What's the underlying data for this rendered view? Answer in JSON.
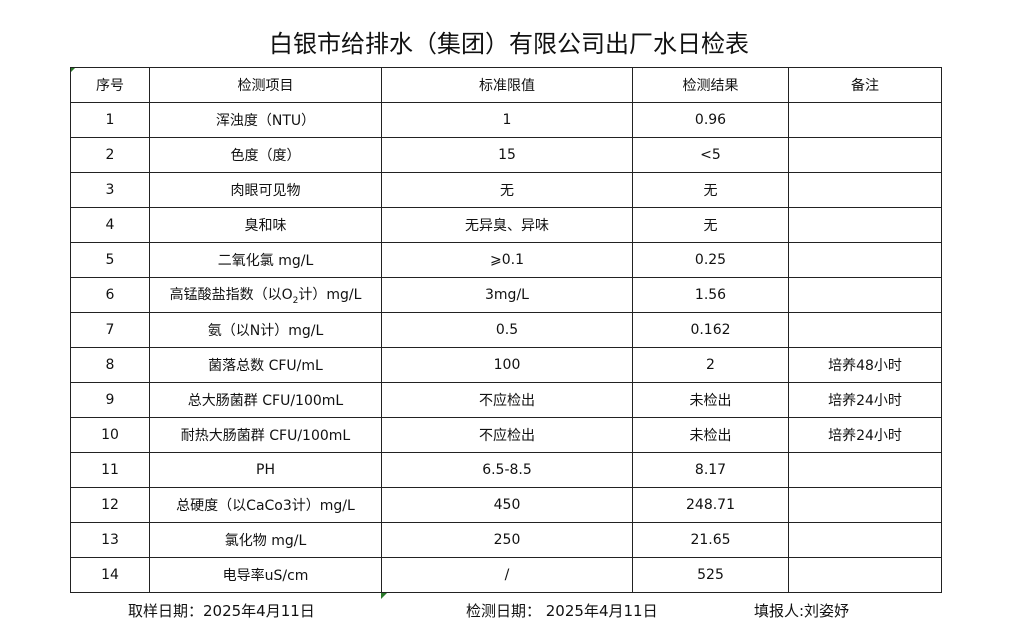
{
  "title": "白银市给排水（集团）有限公司出厂水日检表",
  "headers": [
    "序号",
    "检测项目",
    "标准限值",
    "检测结果",
    "备注"
  ],
  "rows": [
    {
      "no": "1",
      "item": "浑浊度（NTU）",
      "limit": "1",
      "result": "0.96",
      "note": ""
    },
    {
      "no": "2",
      "item": "色度（度）",
      "limit": "15",
      "result": "<5",
      "note": ""
    },
    {
      "no": "3",
      "item": "肉眼可见物",
      "limit": "无",
      "result": "无",
      "note": ""
    },
    {
      "no": "4",
      "item": "臭和味",
      "limit": "无异臭、异味",
      "result": "无",
      "note": ""
    },
    {
      "no": "5",
      "item": "二氧化氯 mg/L",
      "limit": "⩾0.1",
      "result": "0.25",
      "note": ""
    },
    {
      "no": "6",
      "item": "高锰酸盐指数（以O2计）mg/L",
      "item_parts": [
        "高锰酸盐指数（以O",
        "2",
        "计）mg/L"
      ],
      "limit": "3mg/L",
      "result": "1.56",
      "note": ""
    },
    {
      "no": "7",
      "item": "氨（以N计）mg/L",
      "limit": "0.5",
      "result": "0.162",
      "note": ""
    },
    {
      "no": "8",
      "item": "菌落总数 CFU/mL",
      "limit": "100",
      "result": "2",
      "note": "培养48小时"
    },
    {
      "no": "9",
      "item": "总大肠菌群 CFU/100mL",
      "limit": "不应检出",
      "result": "未检出",
      "note": "培养24小时"
    },
    {
      "no": "10",
      "item": "耐热大肠菌群 CFU/100mL",
      "limit": "不应检出",
      "result": "未检出",
      "note": "培养24小时"
    },
    {
      "no": "11",
      "item": "PH",
      "limit": "6.5-8.5",
      "result": "8.17",
      "note": ""
    },
    {
      "no": "12",
      "item": "总硬度（以CaCo3计）mg/L",
      "limit": "450",
      "result": "248.71",
      "note": ""
    },
    {
      "no": "13",
      "item": "氯化物 mg/L",
      "limit": "250",
      "result": "21.65",
      "note": ""
    },
    {
      "no": "14",
      "item": "电导率uS/cm",
      "limit": "/",
      "result": "525",
      "note": ""
    }
  ],
  "footer": {
    "sampling_date": "取样日期：2025年4月11日",
    "test_date": "检测日期： 2025年4月11日",
    "reporter": "填报人:刘姿妤"
  }
}
